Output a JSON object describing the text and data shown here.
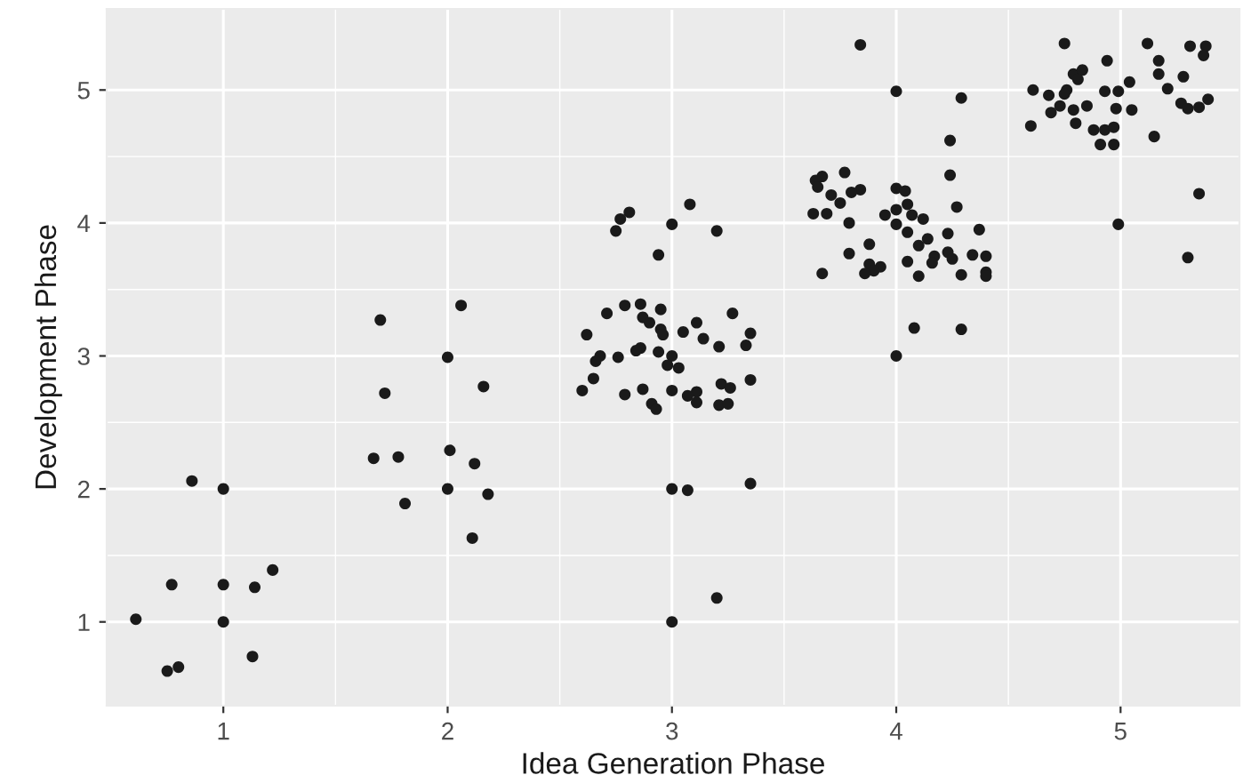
{
  "chart_data": {
    "type": "scatter",
    "xlabel": "Idea Generation Phase",
    "ylabel": "Development Phase",
    "xlim": [
      0.48,
      5.53
    ],
    "ylim": [
      0.37,
      5.61
    ],
    "xticks": [
      1,
      2,
      3,
      4,
      5
    ],
    "yticks": [
      1,
      2,
      3,
      4,
      5
    ],
    "grid": true,
    "marker": "circle",
    "series": [
      {
        "color": "#1a1a1a",
        "x": [
          0.86,
          1.0,
          1.22,
          0.77,
          1.0,
          1.14,
          0.61,
          1.0,
          1.13,
          0.75,
          0.8,
          2.06,
          1.7,
          2.0,
          1.72,
          2.16,
          1.67,
          1.78,
          2.01,
          2.12,
          2.0,
          2.18,
          1.81,
          2.11,
          2.81,
          2.77,
          2.75,
          3.08,
          3.0,
          3.2,
          2.94,
          2.79,
          2.86,
          2.95,
          2.71,
          3.27,
          2.87,
          2.9,
          3.11,
          2.95,
          2.96,
          3.05,
          2.62,
          3.35,
          3.14,
          3.33,
          3.21,
          2.86,
          2.84,
          2.94,
          2.68,
          2.66,
          2.76,
          3.0,
          2.98,
          3.03,
          2.65,
          3.35,
          3.22,
          3.26,
          2.6,
          2.87,
          3.0,
          3.11,
          2.79,
          3.07,
          3.11,
          3.21,
          3.25,
          2.91,
          2.93,
          3.0,
          3.07,
          3.35,
          3.2,
          3.0,
          3.84,
          4.0,
          4.29,
          4.24,
          4.24,
          3.77,
          3.67,
          3.64,
          3.65,
          3.71,
          3.84,
          3.8,
          3.75,
          4.0,
          4.04,
          4.27,
          3.63,
          3.69,
          4.05,
          4.0,
          3.95,
          4.07,
          3.79,
          4.0,
          4.12,
          4.05,
          4.37,
          4.23,
          3.88,
          4.14,
          4.1,
          4.23,
          3.79,
          4.17,
          4.34,
          4.4,
          4.25,
          4.05,
          4.16,
          3.88,
          3.93,
          3.9,
          3.86,
          3.67,
          4.1,
          4.29,
          4.4,
          4.4,
          4.08,
          4.29,
          4.0,
          4.75,
          5.12,
          5.31,
          5.38,
          5.37,
          4.94,
          5.17,
          5.17,
          5.28,
          4.79,
          4.83,
          4.81,
          5.04,
          4.61,
          4.68,
          4.76,
          4.75,
          4.93,
          4.99,
          5.21,
          5.39,
          5.27,
          5.3,
          5.35,
          4.73,
          4.69,
          4.79,
          4.85,
          4.98,
          5.05,
          4.8,
          4.6,
          4.88,
          4.93,
          4.97,
          5.15,
          4.91,
          4.97,
          5.35,
          4.99,
          5.3
        ],
        "values": [
          2.06,
          2.0,
          1.39,
          1.28,
          1.28,
          1.26,
          1.02,
          1.0,
          0.74,
          0.63,
          0.66,
          3.38,
          3.27,
          2.99,
          2.72,
          2.77,
          2.23,
          2.24,
          2.29,
          2.19,
          2.0,
          1.96,
          1.89,
          1.63,
          4.08,
          4.03,
          3.94,
          4.14,
          3.99,
          3.94,
          3.76,
          3.38,
          3.39,
          3.35,
          3.32,
          3.32,
          3.29,
          3.25,
          3.25,
          3.2,
          3.16,
          3.18,
          3.16,
          3.17,
          3.13,
          3.08,
          3.07,
          3.06,
          3.04,
          3.03,
          3.0,
          2.96,
          2.99,
          3.0,
          2.93,
          2.91,
          2.83,
          2.82,
          2.79,
          2.76,
          2.74,
          2.75,
          2.74,
          2.73,
          2.71,
          2.7,
          2.65,
          2.63,
          2.64,
          2.64,
          2.6,
          2.0,
          1.99,
          2.04,
          1.18,
          1.0,
          5.34,
          4.99,
          4.94,
          4.62,
          4.36,
          4.38,
          4.35,
          4.32,
          4.27,
          4.21,
          4.25,
          4.23,
          4.15,
          4.26,
          4.24,
          4.12,
          4.07,
          4.07,
          4.14,
          4.1,
          4.06,
          4.06,
          4.0,
          3.99,
          4.03,
          3.93,
          3.95,
          3.92,
          3.84,
          3.88,
          3.83,
          3.78,
          3.77,
          3.75,
          3.76,
          3.75,
          3.73,
          3.71,
          3.7,
          3.69,
          3.67,
          3.64,
          3.62,
          3.62,
          3.6,
          3.61,
          3.63,
          3.6,
          3.21,
          3.2,
          3.0,
          5.35,
          5.35,
          5.33,
          5.33,
          5.26,
          5.22,
          5.22,
          5.12,
          5.1,
          5.12,
          5.15,
          5.08,
          5.06,
          5.0,
          4.96,
          5.0,
          4.97,
          4.99,
          4.99,
          5.01,
          4.93,
          4.9,
          4.86,
          4.87,
          4.88,
          4.83,
          4.85,
          4.88,
          4.86,
          4.85,
          4.75,
          4.73,
          4.7,
          4.7,
          4.72,
          4.65,
          4.59,
          4.59,
          4.22,
          3.99,
          3.74
        ]
      }
    ]
  }
}
